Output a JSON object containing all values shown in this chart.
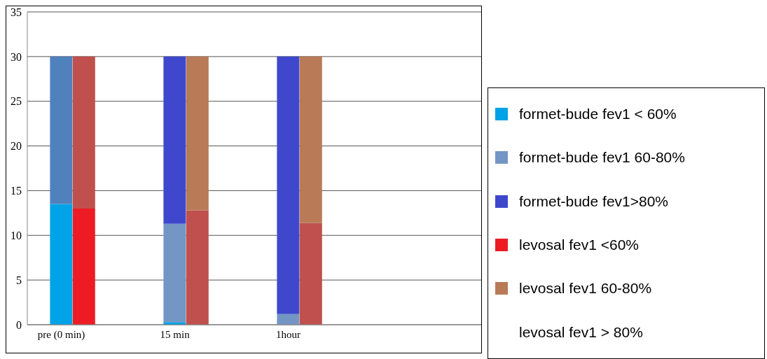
{
  "chart_data": {
    "type": "bar",
    "stacked": true,
    "categories": [
      null,
      "pre (0 min)",
      null,
      null,
      null,
      null,
      "15 min",
      null,
      null,
      null,
      null,
      "1hour",
      null,
      null,
      null,
      null,
      null,
      null,
      null,
      null
    ],
    "series": [
      {
        "name": "formet-bude  fev1 < 60%",
        "color": "#00a2e8",
        "values": [
          null,
          13.5,
          null,
          null,
          null,
          null,
          0.3,
          null,
          null,
          null,
          null,
          null,
          null,
          null,
          null,
          null,
          null,
          null,
          null,
          null
        ]
      },
      {
        "name": "formet-bude  fev1 60-80%",
        "color": "#7396c4",
        "colors": [
          null,
          "#4f81bd",
          null,
          null,
          null,
          null,
          "#7396c4",
          null,
          null,
          null,
          null,
          "#7396c4",
          null,
          null,
          null,
          null,
          null,
          null,
          null,
          null
        ],
        "values": [
          null,
          16.5,
          null,
          null,
          null,
          null,
          11,
          null,
          null,
          null,
          null,
          1.2,
          null,
          null,
          null,
          null,
          null,
          null,
          null,
          null
        ]
      },
      {
        "name": "formet-bude fev1>80%",
        "color": "#3f48cc",
        "values": [
          null,
          null,
          null,
          null,
          null,
          null,
          18.7,
          null,
          null,
          null,
          null,
          28.8,
          null,
          null,
          null,
          null,
          null,
          null,
          null,
          null
        ]
      },
      {
        "name": "levosal fev1 <60%",
        "color": "#ed1c24",
        "colors": [
          null,
          null,
          "#ed1c24",
          null,
          null,
          null,
          null,
          "#c0504d",
          null,
          null,
          null,
          null,
          "#c0504d",
          null,
          null,
          null,
          null,
          null,
          null,
          null
        ],
        "values": [
          null,
          null,
          13,
          null,
          null,
          null,
          null,
          12.8,
          null,
          null,
          null,
          null,
          11.4,
          null,
          null,
          null,
          null,
          null,
          null,
          null
        ]
      },
      {
        "name": "levosal  fev1 60-80%",
        "color": "#b97a57",
        "colors": [
          null,
          null,
          "#c0504d",
          null,
          null,
          null,
          null,
          "#b97a57",
          null,
          null,
          null,
          null,
          "#b97a57",
          null,
          null,
          null,
          null,
          null,
          null,
          null
        ],
        "values": [
          null,
          null,
          17,
          null,
          null,
          null,
          null,
          17.2,
          null,
          null,
          null,
          null,
          18.6,
          null,
          null,
          null,
          null,
          null,
          null,
          null
        ]
      },
      {
        "name": "levosal fev1 > 80%",
        "values": [
          null,
          null,
          null,
          null,
          null,
          null,
          null,
          null,
          null,
          null,
          null,
          null,
          null,
          null,
          null,
          null,
          null,
          null,
          null,
          null
        ]
      }
    ],
    "ylim": [
      0,
      35
    ],
    "yticks": [
      0,
      5,
      10,
      15,
      20,
      25,
      30,
      35
    ],
    "grid": "y",
    "legend": "right"
  }
}
